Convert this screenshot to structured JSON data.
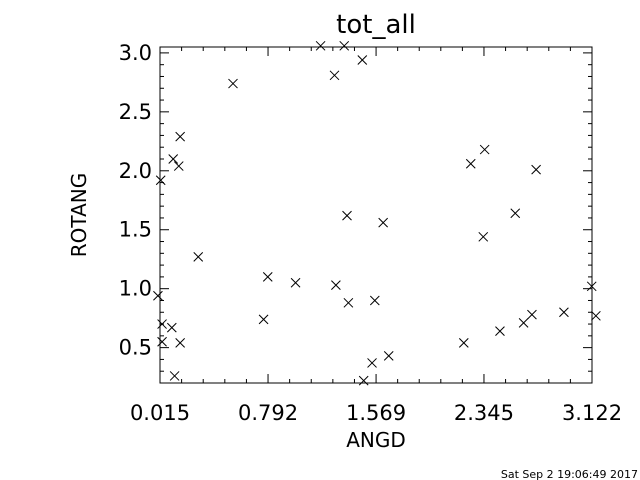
{
  "chart_data": {
    "type": "scatter",
    "title": "tot_all",
    "xlabel": "ANGD",
    "ylabel": "ROTANG",
    "xlim": [
      0.015,
      3.122
    ],
    "ylim": [
      0.2,
      3.05
    ],
    "x_ticks": [
      "0.015",
      "0.792",
      "1.569",
      "2.345",
      "3.122"
    ],
    "x_tick_values": [
      0.015,
      0.792,
      1.569,
      2.345,
      3.122
    ],
    "y_ticks": [
      "0.5",
      "1.0",
      "1.5",
      "2.0",
      "2.5",
      "3.0"
    ],
    "y_tick_values": [
      0.5,
      1.0,
      1.5,
      2.0,
      2.5,
      3.0
    ],
    "grid": false,
    "marker": "x",
    "color": "#000000",
    "points": [
      [
        0.0,
        0.94
      ],
      [
        0.02,
        1.92
      ],
      [
        0.03,
        0.7
      ],
      [
        0.03,
        0.55
      ],
      [
        0.1,
        0.67
      ],
      [
        0.11,
        2.1
      ],
      [
        0.12,
        0.26
      ],
      [
        0.15,
        2.04
      ],
      [
        0.16,
        2.29
      ],
      [
        0.16,
        0.54
      ],
      [
        0.29,
        1.27
      ],
      [
        0.54,
        2.74
      ],
      [
        0.76,
        0.74
      ],
      [
        0.79,
        1.1
      ],
      [
        0.99,
        1.05
      ],
      [
        1.17,
        3.06
      ],
      [
        1.27,
        2.81
      ],
      [
        1.28,
        1.03
      ],
      [
        1.34,
        3.06
      ],
      [
        1.36,
        1.62
      ],
      [
        1.37,
        0.88
      ],
      [
        1.47,
        2.94
      ],
      [
        1.48,
        0.22
      ],
      [
        1.54,
        0.37
      ],
      [
        1.56,
        0.9
      ],
      [
        1.62,
        1.56
      ],
      [
        1.66,
        0.43
      ],
      [
        2.2,
        0.54
      ],
      [
        2.25,
        2.06
      ],
      [
        2.34,
        1.44
      ],
      [
        2.35,
        2.18
      ],
      [
        2.46,
        0.64
      ],
      [
        2.57,
        1.64
      ],
      [
        2.63,
        0.71
      ],
      [
        2.69,
        0.78
      ],
      [
        2.72,
        2.01
      ],
      [
        2.92,
        0.8
      ],
      [
        3.12,
        1.02
      ],
      [
        3.15,
        0.77
      ]
    ]
  },
  "footer": {
    "timestamp": "Sat Sep  2 19:06:49 2017"
  }
}
